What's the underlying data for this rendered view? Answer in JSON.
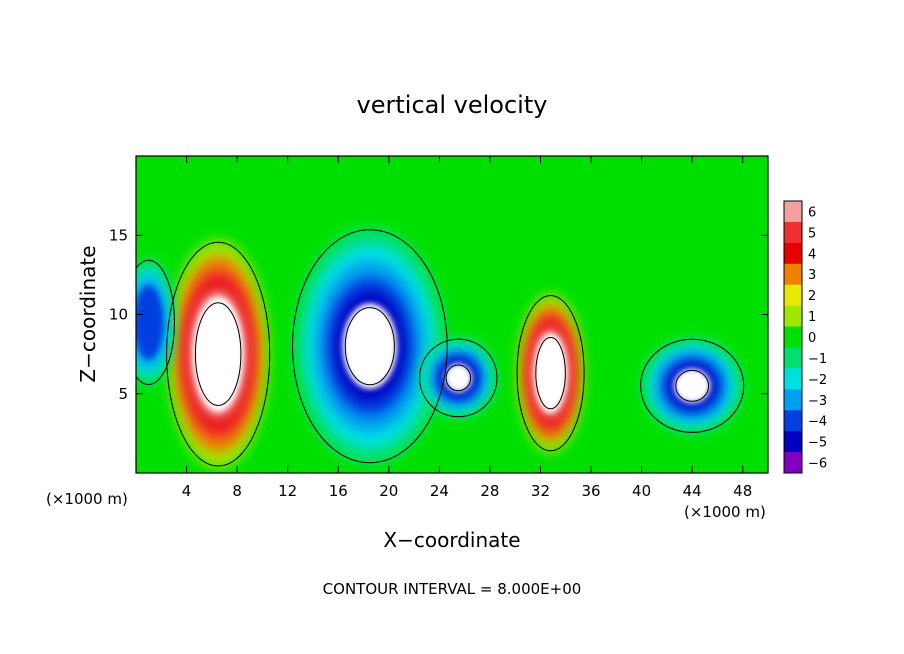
{
  "chart_data": {
    "type": "heatmap",
    "title": "vertical velocity",
    "xlabel": "X−coordinate",
    "ylabel": "Z−coordinate",
    "x_unit_left": "(×1000 m)",
    "x_unit_right": "(×1000 m)",
    "footer": "CONTOUR INTERVAL = 8.000E+00",
    "xlim": [
      0,
      50
    ],
    "ylim": [
      0,
      20
    ],
    "x_ticks": [
      4,
      8,
      12,
      16,
      20,
      24,
      28,
      32,
      36,
      40,
      44,
      48
    ],
    "x_tick_labels": [
      "4",
      "8",
      "12",
      "16",
      "20",
      "24",
      "28",
      "32",
      "36",
      "40",
      "44",
      "48"
    ],
    "y_ticks": [
      5,
      10,
      15
    ],
    "y_tick_labels": [
      "5",
      "10",
      "15"
    ],
    "colorbar": {
      "levels": [
        6,
        5,
        4,
        3,
        2,
        1,
        0,
        -1,
        -2,
        -3,
        -4,
        -5,
        -6
      ],
      "labels": [
        "6",
        "5",
        "4",
        "3",
        "2",
        "1",
        "0",
        "−1",
        "−2",
        "−3",
        "−4",
        "−5",
        "−6"
      ],
      "colors": [
        "#f4a0a0",
        "#ee3030",
        "#e80000",
        "#f08000",
        "#e8e800",
        "#a0e800",
        "#00e000",
        "#00e070",
        "#00e0e0",
        "#00a0f0",
        "#0040e0",
        "#0000c0",
        "#8000c0"
      ]
    },
    "features": [
      {
        "kind": "updraft",
        "x": 6.5,
        "z": 7.5,
        "rx": 4.0,
        "rz": 7.2,
        "value": 8
      },
      {
        "kind": "updraft",
        "x": 32.8,
        "z": 6.3,
        "rx": 2.6,
        "rz": 5.0,
        "value": 8
      },
      {
        "kind": "downdraft",
        "x": 18.5,
        "z": 8.0,
        "rx": 6.0,
        "rz": 7.5,
        "value": -8
      },
      {
        "kind": "downdraft",
        "x": 25.5,
        "z": 6.0,
        "rx": 3.0,
        "rz": 2.5,
        "value": -8
      },
      {
        "kind": "downdraft",
        "x": 44.0,
        "z": 5.5,
        "rx": 4.0,
        "rz": 3.0,
        "value": -8
      },
      {
        "kind": "downdraft",
        "x": 1.0,
        "z": 9.5,
        "rx": 2.0,
        "rz": 4.0,
        "value": -4
      }
    ]
  }
}
